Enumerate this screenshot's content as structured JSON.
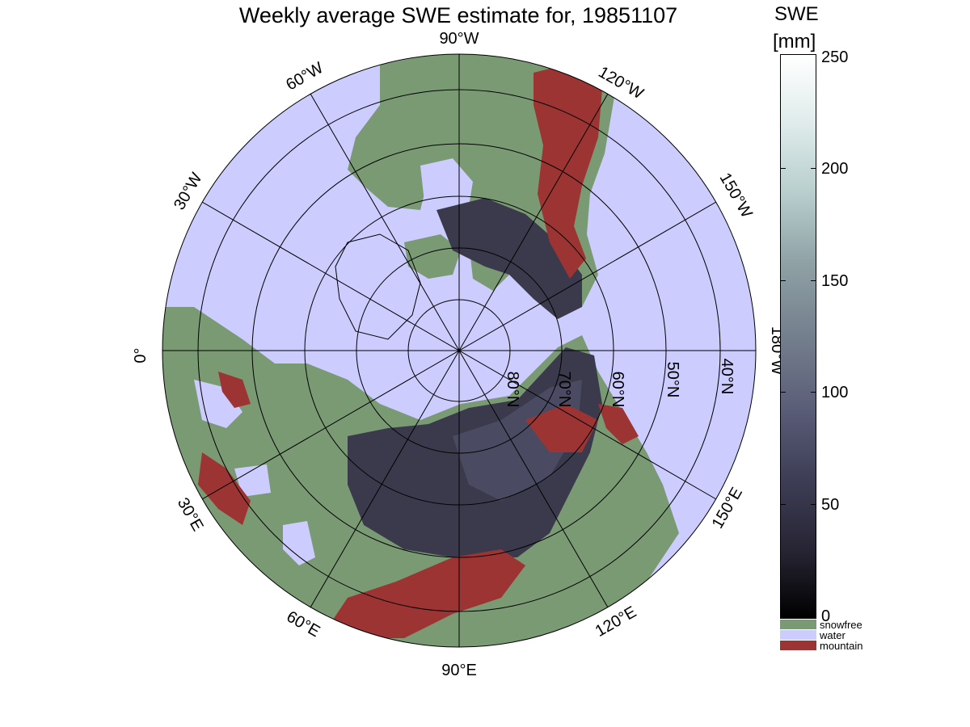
{
  "title": "Weekly average SWE estimate for, 19851107",
  "colorbar": {
    "variable": "SWE",
    "unit": "[mm]",
    "ticks": [
      "250",
      "200",
      "150",
      "100",
      "50",
      "0"
    ],
    "range": [
      0,
      250
    ],
    "categories": [
      {
        "label": "snowfree",
        "color": "#7a9a74"
      },
      {
        "label": "water",
        "color": "#ccccff"
      },
      {
        "label": "mountain",
        "color": "#9c3434"
      }
    ]
  },
  "map": {
    "projection": "north polar stereographic",
    "meridian_labels": {
      "m90w": "90°W",
      "m120w": "120°W",
      "m150w": "150°W",
      "m180w": "180°W",
      "m150e": "150°E",
      "m120e": "120°E",
      "m90e": "90°E",
      "m60e": "60°E",
      "m30e": "30°E",
      "m0": "0°",
      "m30w": "30°W",
      "m60w": "60°W"
    },
    "parallel_labels": {
      "p80n": "80°N",
      "p70n": "70°N",
      "p60n": "60°N",
      "p50n": "50°N",
      "p40n": "40°N"
    },
    "colors": {
      "water": "#ccccff",
      "land": "#7a9a74",
      "mountain": "#9c3434",
      "snow_low": "#2a2935",
      "snow_mid": "#4a4b62"
    }
  }
}
